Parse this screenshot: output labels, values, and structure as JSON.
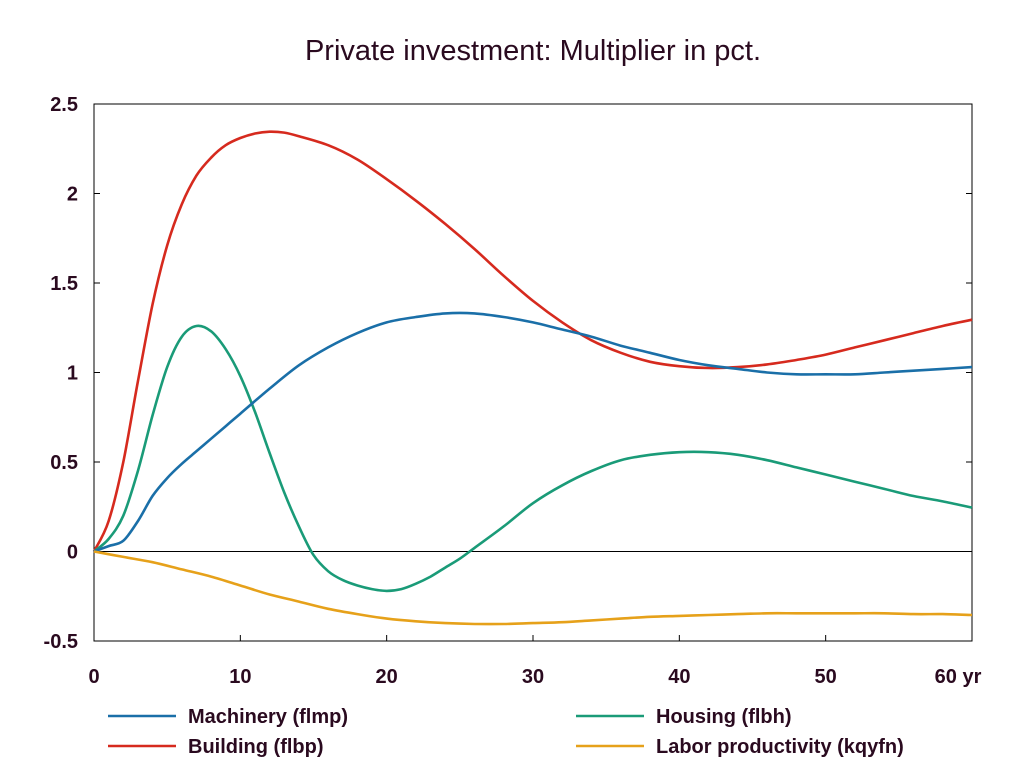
{
  "chart_data": {
    "type": "line",
    "title": "Private investment: Multiplier in pct.",
    "xlabel": "",
    "ylabel": "",
    "xlim": [
      0,
      60
    ],
    "ylim": [
      -0.5,
      2.5
    ],
    "x_ticks": [
      0,
      10,
      20,
      30,
      40,
      50,
      60
    ],
    "x_tick_labels": [
      "0",
      "10",
      "20",
      "30",
      "40",
      "50",
      "60 yr"
    ],
    "y_ticks": [
      -0.5,
      0,
      0.5,
      1,
      1.5,
      2,
      2.5
    ],
    "y_tick_labels": [
      "-0.5",
      "0",
      "0.5",
      "1",
      "1.5",
      "2",
      "2.5"
    ],
    "grid": false,
    "zero_line": true,
    "legend_position": "bottom",
    "series": [
      {
        "name": "Machinery (flmp)",
        "color": "#1a6fa8",
        "points": [
          [
            0,
            0
          ],
          [
            1,
            0.03
          ],
          [
            2,
            0.06
          ],
          [
            3,
            0.17
          ],
          [
            4,
            0.31
          ],
          [
            5,
            0.41
          ],
          [
            6,
            0.49
          ],
          [
            7,
            0.56
          ],
          [
            8,
            0.63
          ],
          [
            9,
            0.7
          ],
          [
            10,
            0.77
          ],
          [
            12,
            0.91
          ],
          [
            14,
            1.04
          ],
          [
            16,
            1.14
          ],
          [
            18,
            1.22
          ],
          [
            20,
            1.28
          ],
          [
            22,
            1.31
          ],
          [
            24,
            1.33
          ],
          [
            26,
            1.33
          ],
          [
            28,
            1.31
          ],
          [
            30,
            1.28
          ],
          [
            32,
            1.24
          ],
          [
            34,
            1.2
          ],
          [
            36,
            1.15
          ],
          [
            38,
            1.11
          ],
          [
            40,
            1.07
          ],
          [
            42,
            1.04
          ],
          [
            44,
            1.02
          ],
          [
            46,
            1.0
          ],
          [
            48,
            0.99
          ],
          [
            50,
            0.99
          ],
          [
            52,
            0.99
          ],
          [
            54,
            1.0
          ],
          [
            56,
            1.01
          ],
          [
            58,
            1.02
          ],
          [
            60,
            1.03
          ]
        ]
      },
      {
        "name": "Housing (flbh)",
        "color": "#1a9b78",
        "points": [
          [
            0,
            0
          ],
          [
            1,
            0.07
          ],
          [
            2,
            0.2
          ],
          [
            3,
            0.45
          ],
          [
            4,
            0.76
          ],
          [
            5,
            1.03
          ],
          [
            6,
            1.2
          ],
          [
            7,
            1.26
          ],
          [
            8,
            1.23
          ],
          [
            9,
            1.13
          ],
          [
            10,
            0.98
          ],
          [
            11,
            0.78
          ],
          [
            12,
            0.55
          ],
          [
            13,
            0.33
          ],
          [
            14,
            0.14
          ],
          [
            15,
            -0.02
          ],
          [
            16,
            -0.11
          ],
          [
            17,
            -0.16
          ],
          [
            18,
            -0.19
          ],
          [
            19,
            -0.21
          ],
          [
            20,
            -0.22
          ],
          [
            21,
            -0.21
          ],
          [
            22,
            -0.18
          ],
          [
            23,
            -0.14
          ],
          [
            24,
            -0.09
          ],
          [
            25,
            -0.04
          ],
          [
            26,
            0.02
          ],
          [
            28,
            0.14
          ],
          [
            30,
            0.27
          ],
          [
            32,
            0.37
          ],
          [
            34,
            0.45
          ],
          [
            36,
            0.51
          ],
          [
            38,
            0.54
          ],
          [
            40,
            0.555
          ],
          [
            42,
            0.555
          ],
          [
            44,
            0.54
          ],
          [
            46,
            0.51
          ],
          [
            48,
            0.47
          ],
          [
            50,
            0.43
          ],
          [
            52,
            0.39
          ],
          [
            54,
            0.35
          ],
          [
            56,
            0.31
          ],
          [
            58,
            0.28
          ],
          [
            60,
            0.245
          ]
        ]
      },
      {
        "name": "Building (flbp)",
        "color": "#d62a1e",
        "points": [
          [
            0,
            0
          ],
          [
            1,
            0.17
          ],
          [
            2,
            0.5
          ],
          [
            3,
            0.95
          ],
          [
            4,
            1.38
          ],
          [
            5,
            1.71
          ],
          [
            6,
            1.94
          ],
          [
            7,
            2.1
          ],
          [
            8,
            2.2
          ],
          [
            9,
            2.27
          ],
          [
            10,
            2.31
          ],
          [
            11,
            2.335
          ],
          [
            12,
            2.345
          ],
          [
            13,
            2.34
          ],
          [
            14,
            2.32
          ],
          [
            16,
            2.27
          ],
          [
            18,
            2.19
          ],
          [
            20,
            2.08
          ],
          [
            22,
            1.96
          ],
          [
            24,
            1.83
          ],
          [
            26,
            1.69
          ],
          [
            28,
            1.54
          ],
          [
            30,
            1.4
          ],
          [
            32,
            1.28
          ],
          [
            34,
            1.18
          ],
          [
            36,
            1.11
          ],
          [
            38,
            1.06
          ],
          [
            40,
            1.035
          ],
          [
            42,
            1.025
          ],
          [
            44,
            1.03
          ],
          [
            46,
            1.045
          ],
          [
            48,
            1.07
          ],
          [
            50,
            1.1
          ],
          [
            52,
            1.14
          ],
          [
            54,
            1.18
          ],
          [
            56,
            1.22
          ],
          [
            58,
            1.26
          ],
          [
            60,
            1.295
          ]
        ]
      },
      {
        "name": "Labor productivity (kqyfn)",
        "color": "#e6a11a",
        "points": [
          [
            0,
            0
          ],
          [
            2,
            -0.03
          ],
          [
            4,
            -0.06
          ],
          [
            6,
            -0.1
          ],
          [
            8,
            -0.14
          ],
          [
            10,
            -0.19
          ],
          [
            12,
            -0.24
          ],
          [
            14,
            -0.28
          ],
          [
            16,
            -0.32
          ],
          [
            18,
            -0.35
          ],
          [
            20,
            -0.375
          ],
          [
            22,
            -0.39
          ],
          [
            24,
            -0.4
          ],
          [
            26,
            -0.405
          ],
          [
            28,
            -0.405
          ],
          [
            30,
            -0.4
          ],
          [
            32,
            -0.395
          ],
          [
            34,
            -0.385
          ],
          [
            36,
            -0.375
          ],
          [
            38,
            -0.365
          ],
          [
            40,
            -0.36
          ],
          [
            42,
            -0.355
          ],
          [
            44,
            -0.35
          ],
          [
            46,
            -0.345
          ],
          [
            48,
            -0.345
          ],
          [
            50,
            -0.345
          ],
          [
            52,
            -0.345
          ],
          [
            54,
            -0.345
          ],
          [
            56,
            -0.35
          ],
          [
            58,
            -0.35
          ],
          [
            60,
            -0.355
          ]
        ]
      }
    ]
  }
}
